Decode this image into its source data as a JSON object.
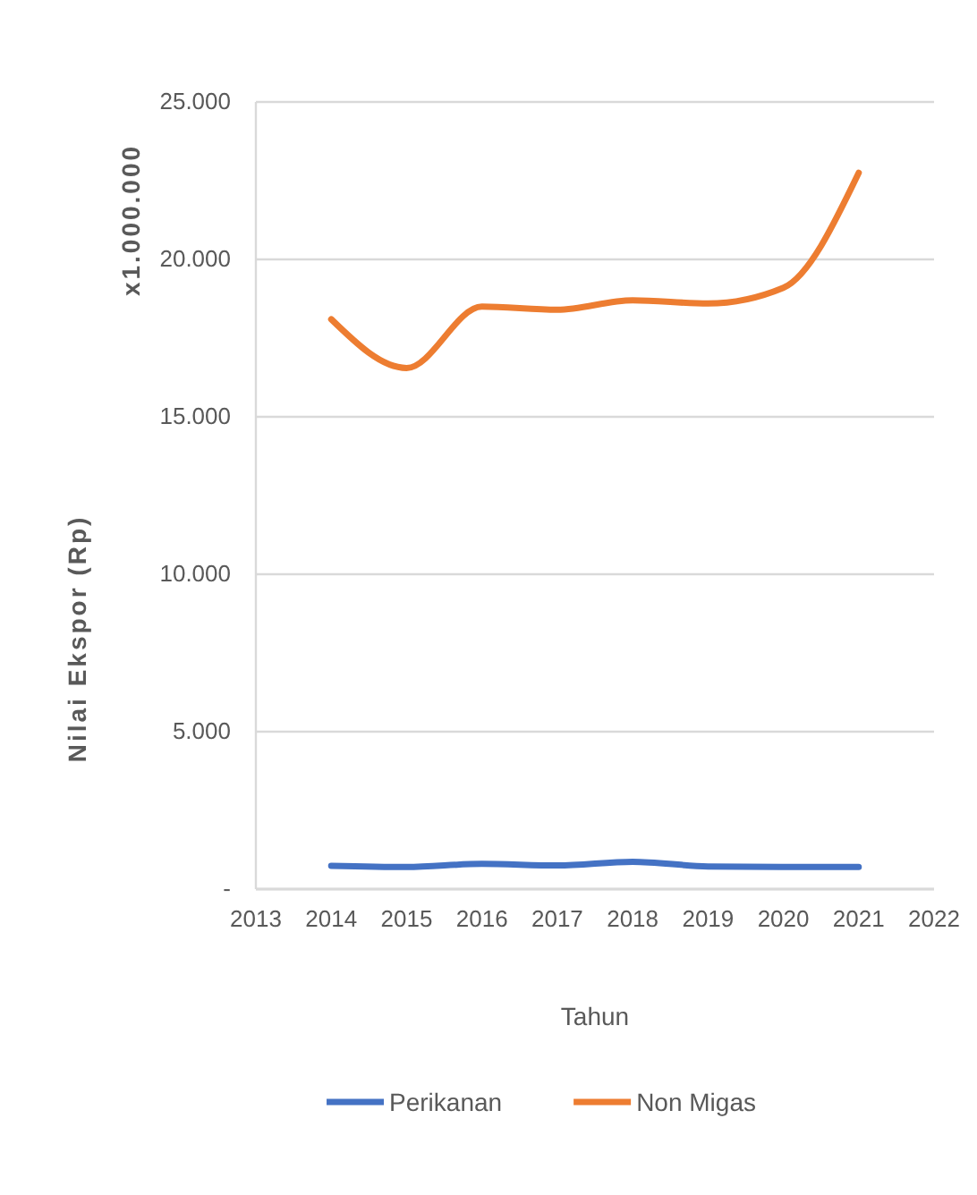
{
  "chart_data": {
    "type": "line",
    "xlabel": "Tahun",
    "ylabel": "Nilai Ekspor (Rp)",
    "annotations": [
      "x1.000.000"
    ],
    "x": [
      2014,
      2015,
      2016,
      2017,
      2018,
      2019,
      2020,
      2021
    ],
    "series": [
      {
        "name": "Perikanan",
        "color": "#4472c4",
        "values": [
          740,
          700,
          800,
          750,
          870,
          720,
          700,
          700
        ]
      },
      {
        "name": "Non Migas",
        "color": "#ed7d31",
        "values": [
          18100,
          16550,
          18500,
          18400,
          18700,
          18600,
          19100,
          22750
        ]
      }
    ],
    "xlim": [
      2013,
      2022
    ],
    "xticks": [
      2013,
      2014,
      2015,
      2016,
      2017,
      2018,
      2019,
      2020,
      2021,
      2022
    ],
    "ylim": [
      0,
      25000
    ],
    "yticks": [
      {
        "value": 0,
        "label": "-"
      },
      {
        "value": 5000,
        "label": "5.000"
      },
      {
        "value": 10000,
        "label": "10.000"
      },
      {
        "value": 15000,
        "label": "15.000"
      },
      {
        "value": 20000,
        "label": "20.000"
      },
      {
        "value": 25000,
        "label": "25.000"
      }
    ],
    "grid": "y",
    "legend": "bottom",
    "marker": "none",
    "line_style": "solid"
  }
}
